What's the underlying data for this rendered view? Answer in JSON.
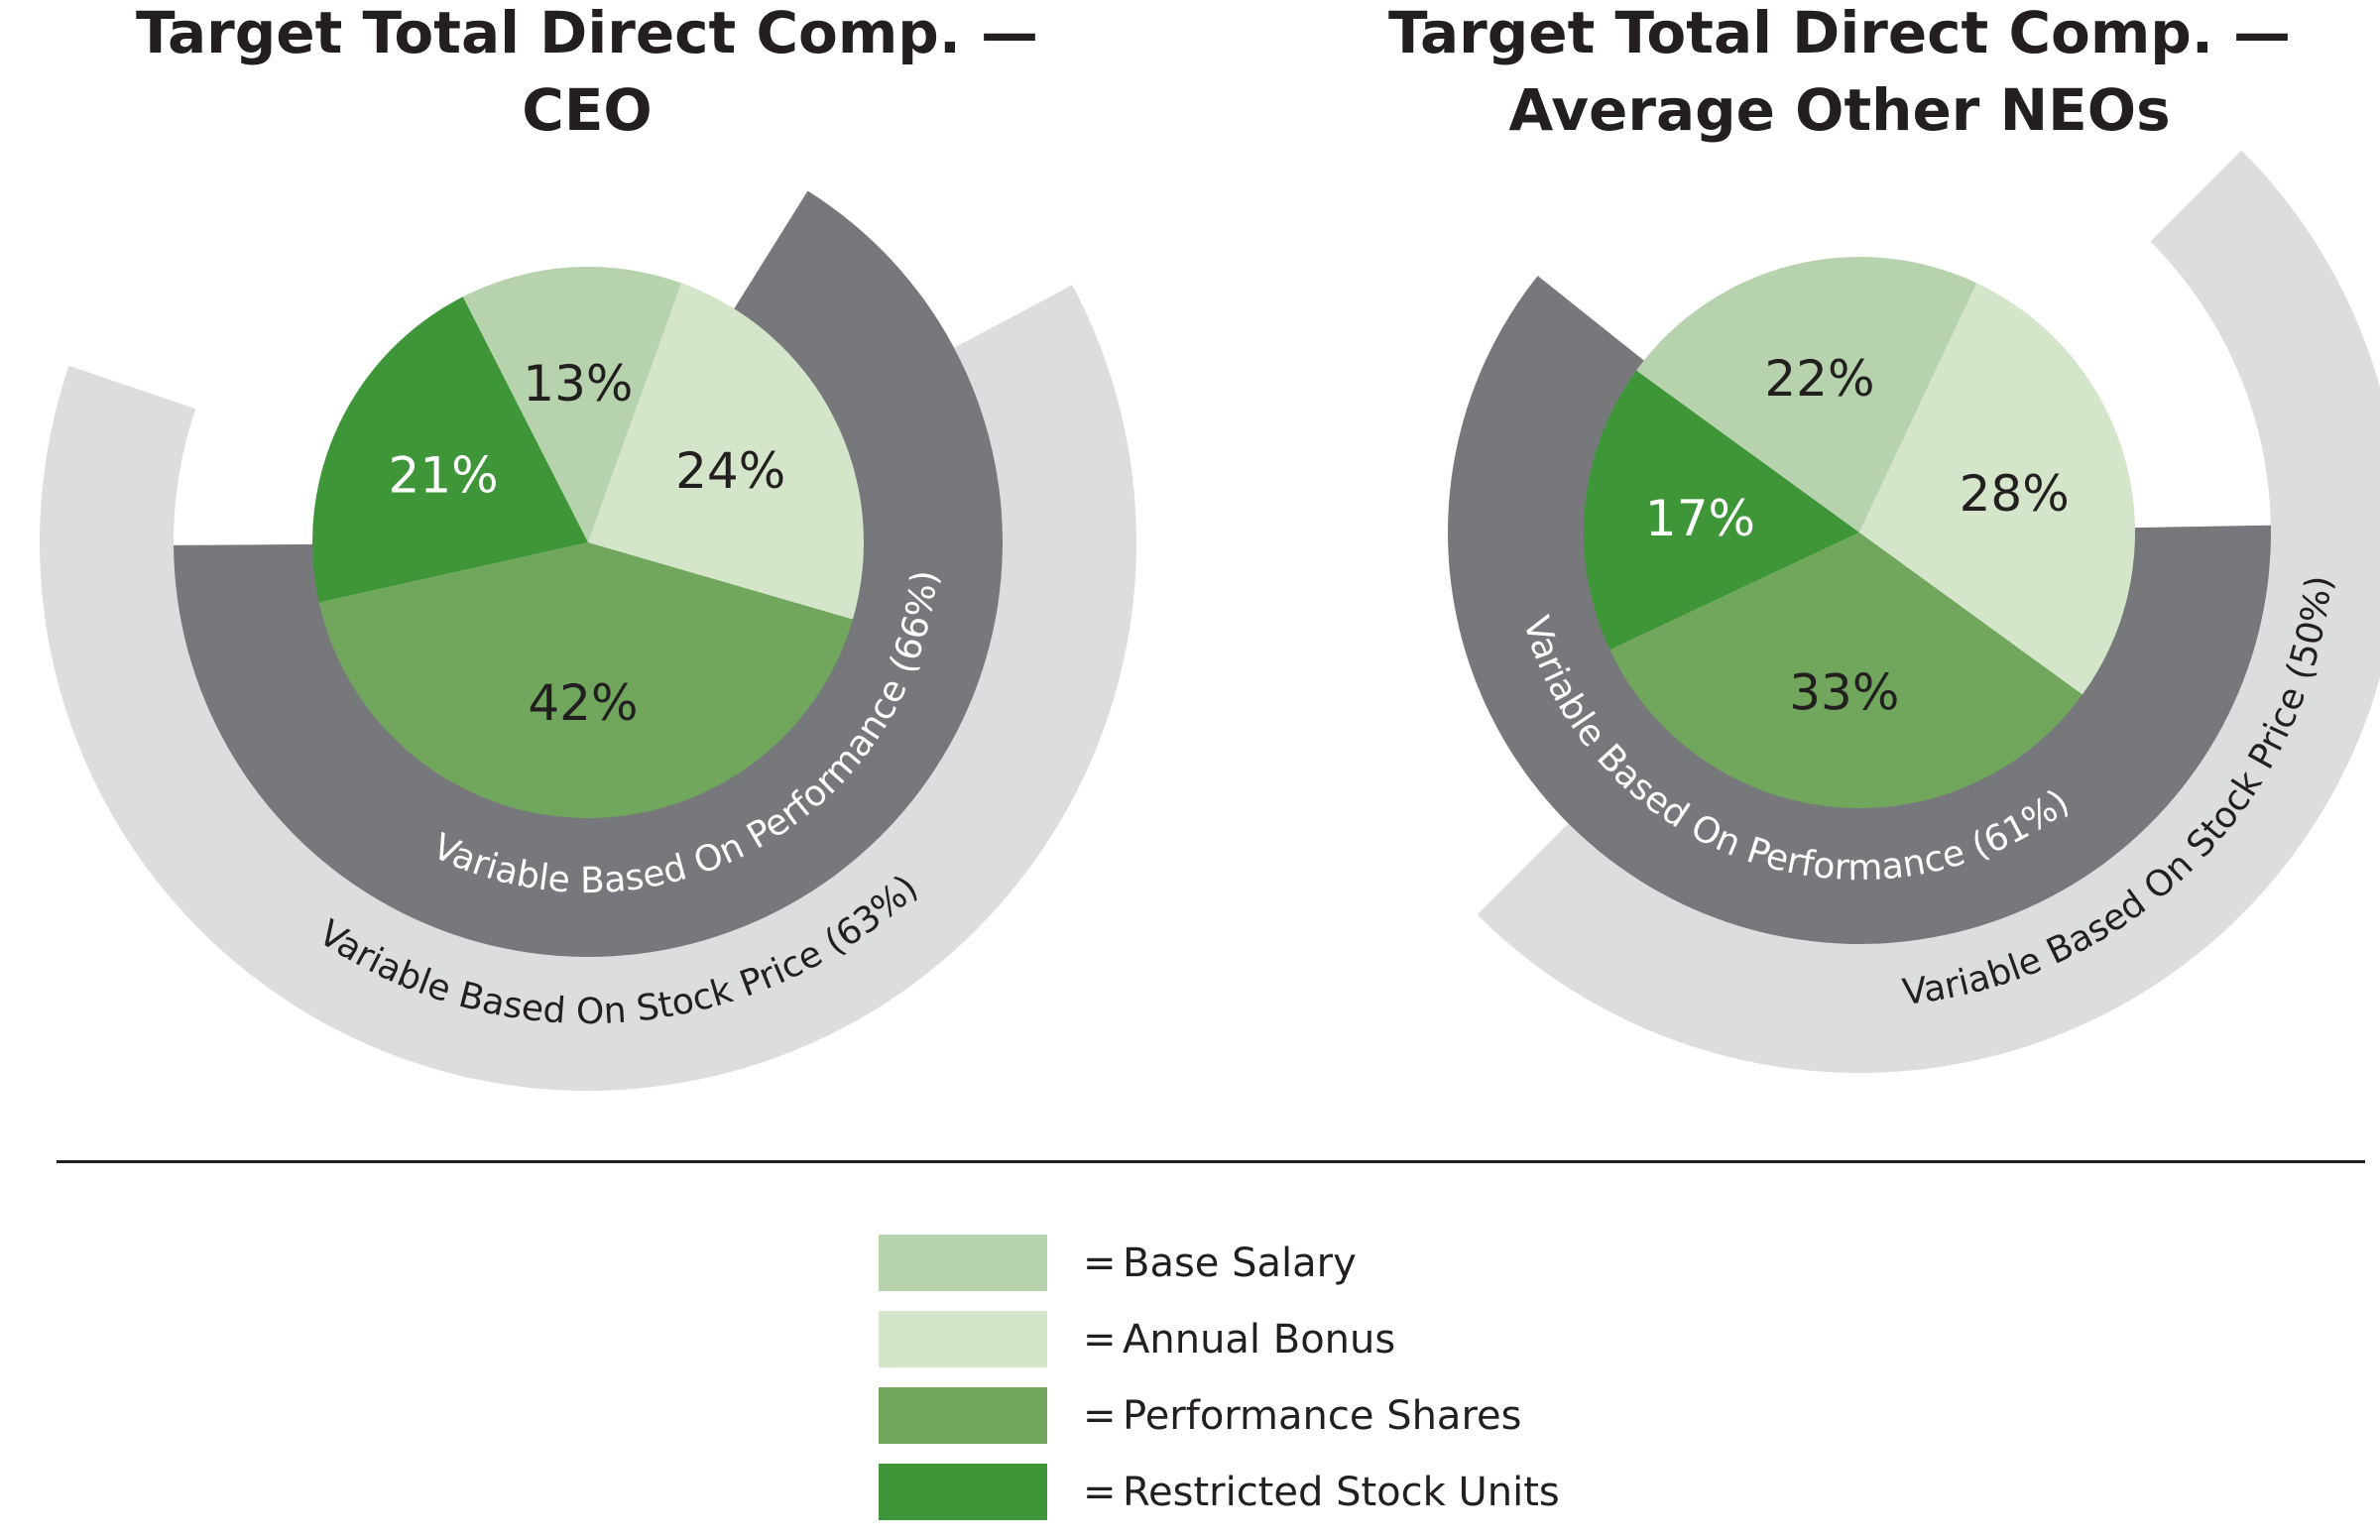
{
  "colors": {
    "base_salary": "#b7d3ad",
    "annual_bonus": "#d4e5ca",
    "performance_shares": "#70a75d",
    "restricted_stock_units": "#3e9639",
    "performance_band": "#77787b",
    "stock_price_band": "#dcdddf",
    "text_dark": "#231f20",
    "text_light": "#ffffff"
  },
  "chart_data": [
    {
      "type": "pie",
      "title": "Target Total Direct Comp. — CEO",
      "title_lines": [
        "Target Total Direct Comp. —",
        "CEO"
      ],
      "slices": [
        {
          "key": "base_salary",
          "label": "13%",
          "value": 13
        },
        {
          "key": "annual_bonus",
          "label": "24%",
          "value": 24
        },
        {
          "key": "performance_shares",
          "label": "42%",
          "value": 42
        },
        {
          "key": "restricted_stock_units",
          "label": "21%",
          "value": 21
        }
      ],
      "bands": [
        {
          "key": "performance",
          "label": "Variable Based On Performance (66%)",
          "value": 66
        },
        {
          "key": "stock_price",
          "label": "Variable Based On Stock Price (63%)",
          "value": 63
        }
      ]
    },
    {
      "type": "pie",
      "title": "Target Total Direct Comp. — Average Other NEOs",
      "title_lines": [
        "Target Total Direct Comp. —",
        "Average Other NEOs"
      ],
      "slices": [
        {
          "key": "base_salary",
          "label": "22%",
          "value": 22
        },
        {
          "key": "annual_bonus",
          "label": "28%",
          "value": 28
        },
        {
          "key": "performance_shares",
          "label": "33%",
          "value": 33
        },
        {
          "key": "restricted_stock_units",
          "label": "17%",
          "value": 17
        }
      ],
      "bands": [
        {
          "key": "performance",
          "label": "Variable Based On Performance (61%)",
          "value": 61
        },
        {
          "key": "stock_price",
          "label": "Variable Based On Stock Price (50%)",
          "value": 50
        }
      ]
    }
  ],
  "legend": [
    {
      "key": "base_salary",
      "eq": "=",
      "label": "Base Salary"
    },
    {
      "key": "annual_bonus",
      "eq": "=",
      "label": "Annual Bonus"
    },
    {
      "key": "performance_shares",
      "eq": "=",
      "label": "Performance Shares"
    },
    {
      "key": "restricted_stock_units",
      "eq": "=",
      "label": "Restricted Stock Units"
    }
  ]
}
